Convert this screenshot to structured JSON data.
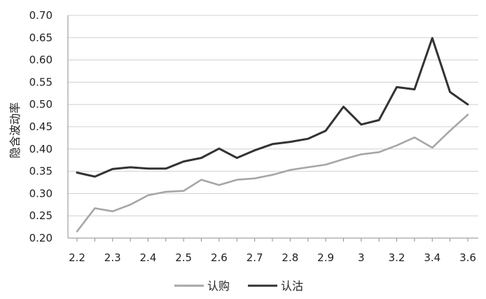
{
  "chart_data": {
    "type": "line",
    "title": "",
    "xlabel": "",
    "ylabel": "隐含波动率",
    "ylim": [
      0.2,
      0.7
    ],
    "yticks": [
      "0.20",
      "0.25",
      "0.30",
      "0.35",
      "0.40",
      "0.45",
      "0.50",
      "0.55",
      "0.60",
      "0.65",
      "0.70"
    ],
    "categories": [
      "2.2",
      "2.25",
      "2.3",
      "2.35",
      "2.4",
      "2.45",
      "2.5",
      "2.55",
      "2.6",
      "2.65",
      "2.7",
      "2.75",
      "2.8",
      "2.85",
      "2.9",
      "2.95",
      "3",
      "3.1",
      "3.2",
      "3.3",
      "3.4",
      "3.5",
      "3.6"
    ],
    "xtick_labels": [
      "2.2",
      "",
      "2.3",
      "",
      "2.4",
      "",
      "2.5",
      "",
      "2.6",
      "",
      "2.7",
      "",
      "2.8",
      "",
      "2.9",
      "",
      "3",
      "",
      "3.2",
      "",
      "3.4",
      "",
      "3.6"
    ],
    "grid": true,
    "legend_position": "bottom",
    "series": [
      {
        "name": "认购",
        "color": "#a6a6a6",
        "values": [
          0.215,
          0.267,
          0.26,
          0.275,
          0.296,
          0.304,
          0.306,
          0.331,
          0.319,
          0.331,
          0.334,
          0.342,
          0.353,
          0.359,
          0.365,
          0.377,
          0.388,
          0.393,
          0.408,
          0.426,
          0.403,
          0.441,
          0.477
        ]
      },
      {
        "name": "认沽",
        "color": "#333333",
        "values": [
          0.347,
          0.338,
          0.355,
          0.359,
          0.356,
          0.356,
          0.372,
          0.38,
          0.401,
          0.38,
          0.397,
          0.411,
          0.416,
          0.423,
          0.441,
          0.495,
          0.455,
          0.465,
          0.539,
          0.534,
          0.649,
          0.528,
          0.5
        ]
      }
    ]
  }
}
